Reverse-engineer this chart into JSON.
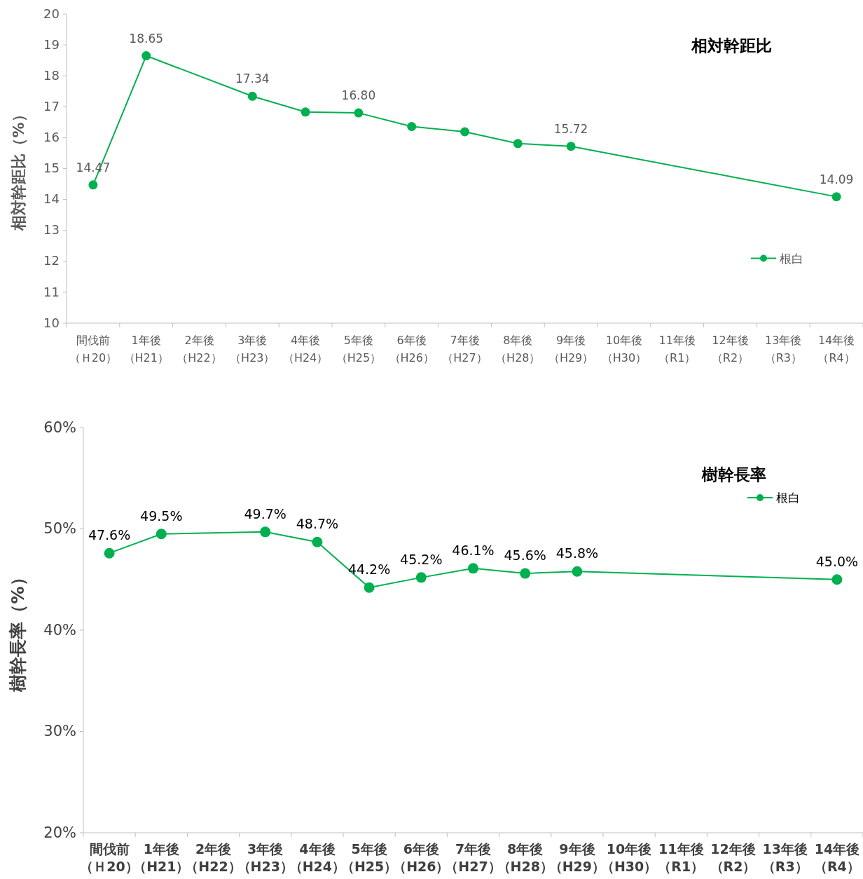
{
  "chart_data": [
    {
      "type": "line",
      "title": "相対幹距比",
      "ylabel": "相対幹距比（%）",
      "categories": [
        "間伐前（Ｈ20）",
        "1年後（H21）",
        "2年後（H22）",
        "3年後（H23）",
        "4年後（H24）",
        "5年後（H25）",
        "6年後（H26）",
        "7年後（H27）",
        "8年後（H28）",
        "9年後（H29）",
        "10年後（H30）",
        "11年後（R1）",
        "12年後（R2）",
        "13年後（R3）",
        "14年後（R4）"
      ],
      "series": [
        {
          "name": "根白",
          "color": "#00b050",
          "values": [
            14.47,
            18.65,
            null,
            17.34,
            16.83,
            16.8,
            16.36,
            16.19,
            15.81,
            15.72,
            null,
            null,
            null,
            null,
            14.09
          ],
          "value_labels": [
            "14.47",
            "18.65",
            null,
            "17.34",
            null,
            "16.80",
            null,
            null,
            null,
            "15.72",
            null,
            null,
            null,
            null,
            "14.09"
          ]
        }
      ],
      "ylim": [
        10,
        20
      ],
      "yticks": [
        10,
        11,
        12,
        13,
        14,
        15,
        16,
        17,
        18,
        19,
        20
      ],
      "grid": false,
      "legend": "right",
      "marker": "circle",
      "line_style": "solid"
    },
    {
      "type": "line",
      "title": "樹幹長率",
      "ylabel": "樹幹長率（%）",
      "categories": [
        "間伐前（Ｈ20）",
        "1年後（H21）",
        "2年後（H22）",
        "3年後（H23）",
        "4年後（H24）",
        "5年後（H25）",
        "6年後（H26）",
        "7年後（H27）",
        "8年後（H28）",
        "9年後（H29）",
        "10年後（H30）",
        "11年後（R1）",
        "12年後（R2）",
        "13年後（R3）",
        "14年後（R4）"
      ],
      "series": [
        {
          "name": "根白",
          "color": "#00b050",
          "values": [
            47.6,
            49.5,
            null,
            49.7,
            48.7,
            44.2,
            45.2,
            46.1,
            45.6,
            45.8,
            null,
            null,
            null,
            null,
            45.0
          ],
          "value_labels": [
            "47.6%",
            "49.5%",
            null,
            "49.7%",
            "48.7%",
            "44.2%",
            "45.2%",
            "46.1%",
            "45.6%",
            "45.8%",
            null,
            null,
            null,
            null,
            "45.0%"
          ]
        }
      ],
      "ylim": [
        20,
        60
      ],
      "yticks": [
        {
          "value": 20,
          "label": "20%"
        },
        {
          "value": 30,
          "label": "30%"
        },
        {
          "value": 40,
          "label": "40%"
        },
        {
          "value": 50,
          "label": "50%"
        },
        {
          "value": 60,
          "label": "60%"
        }
      ],
      "grid": false,
      "legend": "top right",
      "marker": "circle",
      "line_style": "solid"
    }
  ]
}
